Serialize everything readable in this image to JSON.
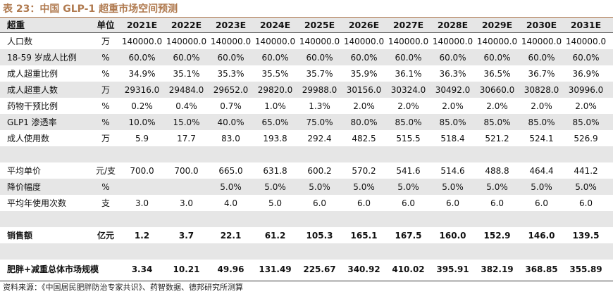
{
  "title": "表 23：中国 GLP-1 超重市场空间预测",
  "header": {
    "label": "超重",
    "unit": "单位",
    "years": [
      "2021E",
      "2022E",
      "2023E",
      "2024E",
      "2025E",
      "2026E",
      "2027E",
      "2028E",
      "2029E",
      "2030E",
      "2031E"
    ]
  },
  "rows": [
    {
      "label": "人口数",
      "unit": "万",
      "values": [
        "140000.0",
        "140000.0",
        "140000.0",
        "140000.0",
        "140000.0",
        "140000.0",
        "140000.0",
        "140000.0",
        "140000.0",
        "140000.0",
        "140000.0"
      ]
    },
    {
      "label": "18-59 岁成人比例",
      "unit": "%",
      "values": [
        "60.0%",
        "60.0%",
        "60.0%",
        "60.0%",
        "60.0%",
        "60.0%",
        "60.0%",
        "60.0%",
        "60.0%",
        "60.0%",
        "60.0%"
      ]
    },
    {
      "label": "成人超重比例",
      "unit": "%",
      "values": [
        "34.9%",
        "35.1%",
        "35.3%",
        "35.5%",
        "35.7%",
        "35.9%",
        "36.1%",
        "36.3%",
        "36.5%",
        "36.7%",
        "36.9%"
      ]
    },
    {
      "label": "成人超重人数",
      "unit": "万",
      "values": [
        "29316.0",
        "29484.0",
        "29652.0",
        "29820.0",
        "29988.0",
        "30156.0",
        "30324.0",
        "30492.0",
        "30660.0",
        "30828.0",
        "30996.0"
      ]
    },
    {
      "label": "药物干预比例",
      "unit": "%",
      "values": [
        "0.2%",
        "0.4%",
        "0.7%",
        "1.0%",
        "1.3%",
        "2.0%",
        "2.0%",
        "2.0%",
        "2.0%",
        "2.0%",
        "2.0%"
      ]
    },
    {
      "label": "GLP1 渗透率",
      "unit": "%",
      "values": [
        "10.0%",
        "15.0%",
        "40.0%",
        "65.0%",
        "75.0%",
        "80.0%",
        "85.0%",
        "85.0%",
        "85.0%",
        "85.0%",
        "85.0%"
      ]
    },
    {
      "label": "成人使用数",
      "unit": "万",
      "values": [
        "5.9",
        "17.7",
        "83.0",
        "193.8",
        "292.4",
        "482.5",
        "515.5",
        "518.4",
        "521.2",
        "524.1",
        "526.9"
      ]
    },
    {
      "label": "",
      "unit": "",
      "values": [
        "",
        "",
        "",
        "",
        "",
        "",
        "",
        "",
        "",
        "",
        ""
      ]
    },
    {
      "label": "平均单价",
      "unit": "元/支",
      "values": [
        "700.0",
        "700.0",
        "665.0",
        "631.8",
        "600.2",
        "570.2",
        "541.6",
        "514.6",
        "488.8",
        "464.4",
        "441.2"
      ]
    },
    {
      "label": "降价幅度",
      "unit": "%",
      "values": [
        "",
        "",
        "5.0%",
        "5.0%",
        "5.0%",
        "5.0%",
        "5.0%",
        "5.0%",
        "5.0%",
        "5.0%",
        "5.0%"
      ]
    },
    {
      "label": "平均年使用次数",
      "unit": "支",
      "values": [
        "3.0",
        "3.0",
        "4.0",
        "5.0",
        "6.0",
        "6.0",
        "6.0",
        "6.0",
        "6.0",
        "6.0",
        "6.0"
      ]
    },
    {
      "label": "",
      "unit": "",
      "values": [
        "",
        "",
        "",
        "",
        "",
        "",
        "",
        "",
        "",
        "",
        ""
      ]
    },
    {
      "label": "销售额",
      "unit": "亿元",
      "values": [
        "1.2",
        "3.7",
        "22.1",
        "61.2",
        "105.3",
        "165.1",
        "167.5",
        "160.0",
        "152.9",
        "146.0",
        "139.5"
      ]
    },
    {
      "label": "",
      "unit": "",
      "values": [
        "",
        "",
        "",
        "",
        "",
        "",
        "",
        "",
        "",
        "",
        ""
      ]
    },
    {
      "label": "肥胖+减重总体市场规模",
      "unit": "",
      "values": [
        "3.34",
        "10.21",
        "49.96",
        "131.49",
        "225.67",
        "340.92",
        "410.02",
        "395.91",
        "382.19",
        "368.85",
        "355.89"
      ]
    }
  ],
  "source": "资料来源：《中国居民肥胖防治专家共识》、药智数据、德邦研究所测算"
}
